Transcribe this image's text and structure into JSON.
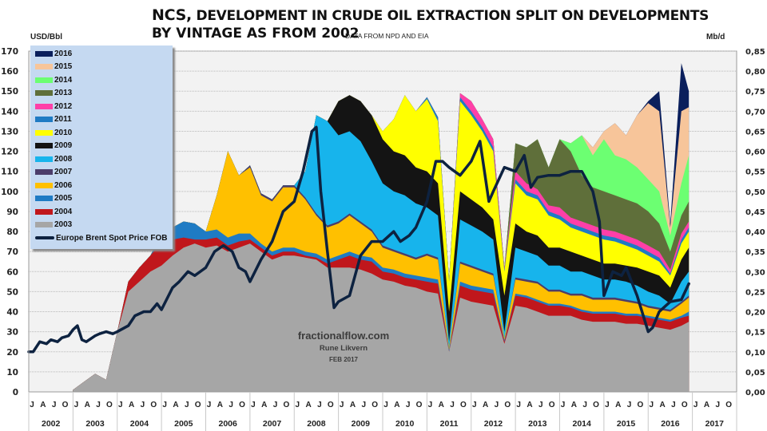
{
  "header": {
    "title_line1_prefix": "NCS,",
    "title_line1": " DEVELOPMENT IN CRUDE OIL EXTRACTION SPLIT ON DEVELOPMENTS",
    "title_line2": "BY VINTAGE AS FROM 2002",
    "source": "DATA FROM NPD AND EIA"
  },
  "watermark": {
    "site": "fractionalflow.com",
    "author": "Rune Likvern",
    "date": "FEB 2017"
  },
  "chart_data": {
    "type": "area",
    "title": "NCS, DEVELOPMENT IN CRUDE OIL EXTRACTION SPLIT ON DEVELOPMENTS BY VINTAGE AS FROM 2002",
    "subtitle": "DATA FROM NPD AND EIA",
    "ylabel": "USD/Bbl",
    "y2label": "Mb/d",
    "ylim": [
      0,
      170
    ],
    "y2lim": [
      0,
      0.85
    ],
    "yticks": [
      "0",
      "10",
      "20",
      "30",
      "40",
      "50",
      "60",
      "70",
      "80",
      "90",
      "100",
      "110",
      "120",
      "130",
      "140",
      "150",
      "160",
      "170"
    ],
    "y2ticks": [
      "0,00",
      "0,05",
      "0,10",
      "0,15",
      "0,20",
      "0,25",
      "0,30",
      "0,35",
      "0,40",
      "0,45",
      "0,50",
      "0,55",
      "0,60",
      "0,65",
      "0,70",
      "0,75",
      "0,80",
      "0,85"
    ],
    "xlim": [
      2002.0,
      2018.0
    ],
    "month_ticks": [
      "J",
      "A",
      "J",
      "O"
    ],
    "years": [
      "2002",
      "2003",
      "2004",
      "2005",
      "2006",
      "2007",
      "2008",
      "2009",
      "2010",
      "2011",
      "2012",
      "2013",
      "2014",
      "2015",
      "2016",
      "2017"
    ],
    "grid": true,
    "legend_position": "top-left",
    "stack_note": "Stacked production by development vintage on right axis (Mb/d), shown in left-axis equivalent units (1 Mb/d = 200 USD/Bbl scale); values are cumulative stack tops",
    "x": [
      2003.0,
      2003.25,
      2003.5,
      2003.75,
      2004.0,
      2004.25,
      2004.5,
      2004.75,
      2005.0,
      2005.25,
      2005.5,
      2005.75,
      2006.0,
      2006.25,
      2006.5,
      2006.75,
      2007.0,
      2007.25,
      2007.5,
      2007.75,
      2008.0,
      2008.25,
      2008.5,
      2008.75,
      2009.0,
      2009.25,
      2009.5,
      2009.75,
      2010.0,
      2010.25,
      2010.5,
      2010.75,
      2011.0,
      2011.25,
      2011.5,
      2011.75,
      2012.0,
      2012.25,
      2012.5,
      2012.75,
      2013.0,
      2013.25,
      2013.5,
      2013.75,
      2014.0,
      2014.25,
      2014.5,
      2014.75,
      2015.0,
      2015.25,
      2015.5,
      2015.75,
      2016.0,
      2016.25,
      2016.5,
      2016.75,
      2016.92
    ],
    "series": [
      {
        "name": "2003",
        "color": "#a6a6a6",
        "values": [
          1,
          5,
          9,
          6,
          30,
          50,
          55,
          60,
          63,
          68,
          72,
          74,
          72,
          73,
          70,
          72,
          74,
          70,
          66,
          68,
          68,
          67,
          66,
          62,
          62,
          62,
          61,
          59,
          56,
          55,
          53,
          52,
          50,
          49,
          20,
          47,
          45,
          44,
          43,
          24,
          43,
          42,
          40,
          38,
          38,
          38,
          36,
          35,
          35,
          35,
          34,
          34,
          33,
          32,
          31,
          33,
          35
        ]
      },
      {
        "name": "2004",
        "color": "#c0171c",
        "values": [
          1,
          5,
          9,
          6,
          30,
          55,
          62,
          68,
          75,
          76,
          77,
          76,
          76,
          77,
          73,
          75,
          76,
          72,
          68,
          70,
          70,
          68,
          67,
          64,
          66,
          68,
          66,
          65,
          60,
          59,
          57,
          56,
          55,
          54,
          20,
          53,
          51,
          50,
          49,
          25,
          48,
          47,
          45,
          43,
          43,
          42,
          40,
          39,
          39,
          39,
          38,
          38,
          37,
          36,
          35,
          37,
          38
        ]
      },
      {
        "name": "2005",
        "color": "#1f7bc4",
        "values": [
          1,
          5,
          9,
          6,
          30,
          55,
          62,
          68,
          79,
          82,
          85,
          84,
          80,
          81,
          77,
          79,
          79,
          74,
          70,
          72,
          72,
          70,
          69,
          66,
          68,
          70,
          68,
          67,
          62,
          61,
          59,
          58,
          57,
          56,
          21,
          55,
          53,
          52,
          51,
          26,
          49,
          48,
          46,
          44,
          44,
          43,
          41,
          40,
          40,
          40,
          39,
          39,
          38,
          37,
          36,
          38,
          40
        ]
      },
      {
        "name": "2006",
        "color": "#ffc000",
        "values": [
          1,
          5,
          9,
          6,
          30,
          55,
          62,
          68,
          79,
          82,
          85,
          84,
          80,
          98,
          120,
          108,
          112,
          98,
          95,
          102,
          102,
          96,
          88,
          82,
          84,
          88,
          84,
          80,
          72,
          70,
          68,
          66,
          68,
          66,
          22,
          64,
          62,
          60,
          58,
          27,
          56,
          55,
          54,
          50,
          50,
          48,
          48,
          46,
          46,
          46,
          45,
          44,
          42,
          41,
          40,
          44,
          47
        ]
      },
      {
        "name": "2007",
        "color": "#4b3d6b",
        "values": [
          1,
          5,
          9,
          6,
          30,
          55,
          62,
          68,
          79,
          82,
          85,
          84,
          80,
          98,
          120,
          108,
          113,
          99,
          96,
          103,
          103,
          97,
          89,
          83,
          85,
          89,
          85,
          81,
          73,
          71,
          69,
          67,
          69,
          67,
          22,
          65,
          63,
          61,
          59,
          27,
          57,
          56,
          55,
          51,
          51,
          49,
          49,
          47,
          47,
          47,
          46,
          45,
          43,
          42,
          41,
          45,
          48
        ]
      },
      {
        "name": "2008",
        "color": "#17b4ec",
        "values": [
          1,
          5,
          9,
          6,
          30,
          55,
          62,
          68,
          79,
          82,
          85,
          84,
          80,
          98,
          120,
          108,
          113,
          99,
          96,
          103,
          103,
          110,
          138,
          135,
          128,
          130,
          125,
          115,
          104,
          100,
          98,
          94,
          92,
          88,
          25,
          86,
          83,
          80,
          76,
          30,
          72,
          70,
          68,
          63,
          63,
          60,
          60,
          58,
          56,
          56,
          55,
          53,
          50,
          48,
          44,
          55,
          60
        ]
      },
      {
        "name": "2009",
        "color": "#141414",
        "values": [
          1,
          5,
          9,
          6,
          30,
          55,
          62,
          68,
          79,
          82,
          85,
          84,
          80,
          98,
          120,
          108,
          113,
          99,
          96,
          103,
          103,
          110,
          138,
          135,
          145,
          148,
          145,
          138,
          126,
          120,
          118,
          112,
          110,
          104,
          40,
          100,
          96,
          92,
          86,
          48,
          84,
          80,
          78,
          72,
          72,
          70,
          68,
          66,
          64,
          64,
          63,
          62,
          60,
          58,
          52,
          66,
          72
        ]
      },
      {
        "name": "2010",
        "color": "#ffff00",
        "values": [
          1,
          5,
          9,
          6,
          30,
          55,
          62,
          68,
          79,
          82,
          85,
          84,
          80,
          98,
          120,
          108,
          113,
          99,
          96,
          103,
          103,
          110,
          138,
          135,
          145,
          148,
          145,
          138,
          130,
          136,
          148,
          140,
          146,
          135,
          55,
          145,
          138,
          130,
          120,
          60,
          104,
          98,
          96,
          88,
          86,
          82,
          80,
          78,
          76,
          75,
          73,
          71,
          68,
          65,
          58,
          74,
          80
        ]
      },
      {
        "name": "2011",
        "color": "#1f7bc4",
        "values": [
          1,
          5,
          9,
          6,
          30,
          55,
          62,
          68,
          79,
          82,
          85,
          84,
          80,
          98,
          120,
          108,
          113,
          99,
          96,
          103,
          103,
          110,
          138,
          135,
          145,
          148,
          145,
          138,
          130,
          136,
          148,
          140,
          147,
          137,
          56,
          147,
          140,
          132,
          122,
          61,
          106,
          100,
          98,
          90,
          88,
          84,
          82,
          80,
          78,
          77,
          75,
          73,
          70,
          67,
          59,
          76,
          82
        ]
      },
      {
        "name": "2012",
        "color": "#ff3fa8",
        "values": [
          1,
          5,
          9,
          6,
          30,
          55,
          62,
          68,
          79,
          82,
          85,
          84,
          80,
          98,
          120,
          108,
          113,
          99,
          96,
          103,
          103,
          110,
          138,
          135,
          145,
          148,
          145,
          138,
          130,
          136,
          148,
          140,
          147,
          137,
          56,
          149,
          145,
          136,
          126,
          62,
          110,
          104,
          101,
          93,
          92,
          87,
          85,
          83,
          81,
          80,
          78,
          76,
          73,
          70,
          61,
          79,
          85
        ]
      },
      {
        "name": "2013",
        "color": "#5f6f3a",
        "values": [
          1,
          5,
          9,
          6,
          30,
          55,
          62,
          68,
          79,
          82,
          85,
          84,
          80,
          98,
          120,
          108,
          113,
          99,
          96,
          103,
          103,
          110,
          138,
          135,
          145,
          148,
          145,
          138,
          130,
          136,
          148,
          140,
          147,
          137,
          56,
          149,
          145,
          136,
          126,
          62,
          124,
          122,
          126,
          112,
          126,
          120,
          108,
          102,
          100,
          98,
          96,
          94,
          90,
          84,
          70,
          88,
          95
        ]
      },
      {
        "name": "2014",
        "color": "#6cff72",
        "values": [
          1,
          5,
          9,
          6,
          30,
          55,
          62,
          68,
          79,
          82,
          85,
          84,
          80,
          98,
          120,
          108,
          113,
          99,
          96,
          103,
          103,
          110,
          138,
          135,
          145,
          148,
          145,
          138,
          130,
          136,
          148,
          140,
          147,
          137,
          56,
          149,
          145,
          136,
          126,
          62,
          124,
          122,
          126,
          112,
          126,
          124,
          128,
          118,
          126,
          118,
          116,
          112,
          106,
          100,
          78,
          104,
          118
        ]
      },
      {
        "name": "2015",
        "color": "#f7c59a",
        "values": [
          1,
          5,
          9,
          6,
          30,
          55,
          62,
          68,
          79,
          82,
          85,
          84,
          80,
          98,
          120,
          108,
          113,
          99,
          96,
          103,
          103,
          110,
          138,
          135,
          145,
          148,
          145,
          138,
          130,
          136,
          148,
          140,
          147,
          137,
          56,
          149,
          145,
          136,
          126,
          62,
          124,
          122,
          126,
          112,
          126,
          124,
          128,
          122,
          130,
          134,
          128,
          138,
          144,
          140,
          82,
          140,
          142
        ]
      },
      {
        "name": "2016",
        "color": "#0a1f5c",
        "values": [
          1,
          5,
          9,
          6,
          30,
          55,
          62,
          68,
          79,
          82,
          85,
          84,
          80,
          98,
          120,
          108,
          113,
          99,
          96,
          103,
          103,
          110,
          138,
          135,
          145,
          148,
          145,
          138,
          130,
          136,
          148,
          140,
          147,
          137,
          56,
          149,
          145,
          136,
          126,
          62,
          124,
          122,
          126,
          112,
          126,
          124,
          128,
          122,
          130,
          134,
          128,
          138,
          145,
          150,
          84,
          164,
          150
        ]
      }
    ],
    "line_series": {
      "name": "Europe Brent Spot Price FOB",
      "color": "#0d2240",
      "x": [
        2002.0,
        2002.1,
        2002.25,
        2002.4,
        2002.5,
        2002.65,
        2002.75,
        2002.9,
        2003.0,
        2003.1,
        2003.2,
        2003.3,
        2003.5,
        2003.6,
        2003.75,
        2003.9,
        2004.0,
        2004.25,
        2004.4,
        2004.6,
        2004.75,
        2004.9,
        2005.0,
        2005.25,
        2005.4,
        2005.6,
        2005.75,
        2006.0,
        2006.2,
        2006.4,
        2006.6,
        2006.75,
        2006.9,
        2007.0,
        2007.25,
        2007.5,
        2007.75,
        2008.0,
        2008.2,
        2008.4,
        2008.5,
        2008.6,
        2008.75,
        2008.9,
        2009.0,
        2009.25,
        2009.5,
        2009.75,
        2010.0,
        2010.25,
        2010.4,
        2010.6,
        2010.75,
        2011.0,
        2011.2,
        2011.35,
        2011.5,
        2011.75,
        2012.0,
        2012.2,
        2012.4,
        2012.5,
        2012.75,
        2013.0,
        2013.2,
        2013.35,
        2013.5,
        2013.75,
        2014.0,
        2014.25,
        2014.5,
        2014.75,
        2014.9,
        2015.0,
        2015.2,
        2015.4,
        2015.5,
        2015.75,
        2016.0,
        2016.1,
        2016.25,
        2016.5,
        2016.75,
        2016.92
      ],
      "values": [
        20,
        20,
        25,
        24,
        26,
        25,
        27,
        28,
        31,
        33,
        26,
        25,
        28,
        29,
        30,
        29,
        30,
        33,
        38,
        40,
        40,
        44,
        41,
        52,
        55,
        60,
        58,
        62,
        70,
        73,
        70,
        62,
        60,
        55,
        66,
        75,
        90,
        95,
        110,
        130,
        132,
        100,
        70,
        42,
        45,
        48,
        68,
        75,
        75,
        80,
        75,
        78,
        82,
        95,
        115,
        115,
        112,
        108,
        115,
        125,
        95,
        100,
        112,
        110,
        118,
        102,
        107,
        108,
        108,
        110,
        110,
        100,
        85,
        48,
        60,
        58,
        62,
        48,
        30,
        32,
        40,
        45,
        46,
        54
      ]
    }
  },
  "legend": {
    "items": [
      {
        "label": "2016",
        "color": "#0a1f5c"
      },
      {
        "label": "2015",
        "color": "#f7c59a"
      },
      {
        "label": "2014",
        "color": "#6cff72"
      },
      {
        "label": "2013",
        "color": "#5f6f3a"
      },
      {
        "label": "2012",
        "color": "#ff3fa8"
      },
      {
        "label": "2011",
        "color": "#1f7bc4"
      },
      {
        "label": "2010",
        "color": "#ffff00"
      },
      {
        "label": "2009",
        "color": "#141414"
      },
      {
        "label": "2008",
        "color": "#17b4ec"
      },
      {
        "label": "2007",
        "color": "#4b3d6b"
      },
      {
        "label": "2006",
        "color": "#ffc000"
      },
      {
        "label": "2005",
        "color": "#1f7bc4"
      },
      {
        "label": "2004",
        "color": "#c0171c"
      },
      {
        "label": "2003",
        "color": "#a6a6a6"
      }
    ],
    "line_label": "Europe Brent Spot Price FOB"
  }
}
